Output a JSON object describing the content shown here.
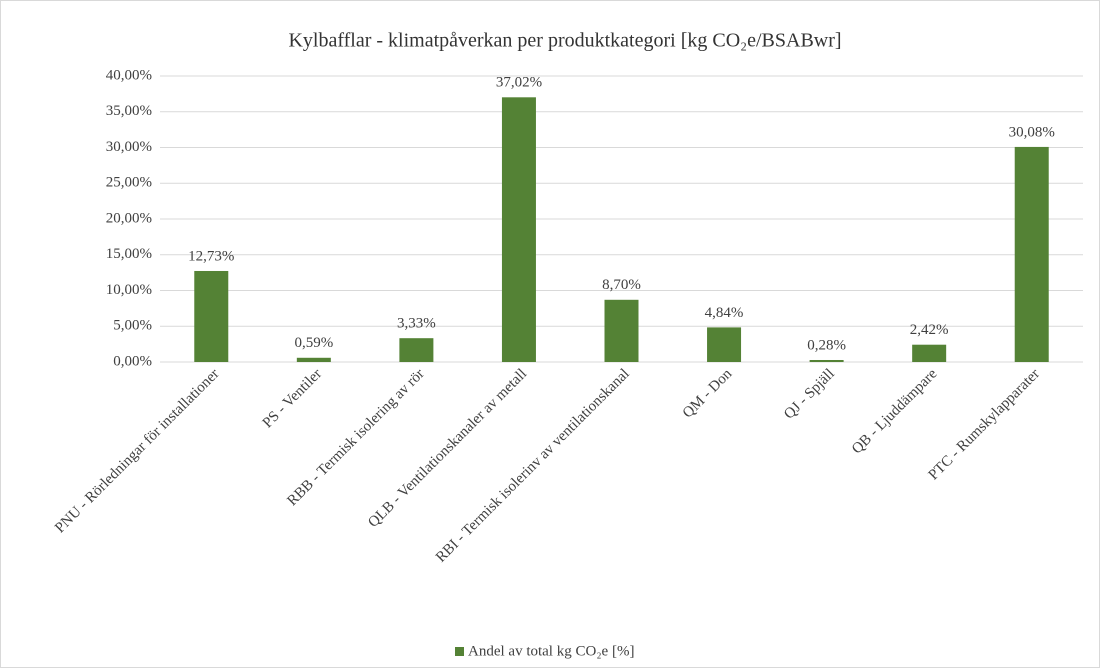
{
  "chart_data": {
    "type": "bar",
    "title": "Kylbafflar - klimatpåverkan per produktkategori [kg CO₂e/BSABwr]",
    "categories": [
      "PNU - Rörledningar för installationer",
      "PS - Ventiler",
      "RBB - Termisk isolering av rör",
      "QLB - Ventilationskanaler av metall",
      "RBI - Termisk isolerinv av ventilationskanal",
      "QM - Don",
      "QJ - Spjäll",
      "QB - Ljuddämpare",
      "PTC - Rumskylapparater"
    ],
    "series": [
      {
        "name": "Andel av total kg CO₂e [%]",
        "color": "#548235",
        "values": [
          12.73,
          0.59,
          3.33,
          37.02,
          8.7,
          4.84,
          0.28,
          2.42,
          30.08
        ],
        "value_labels": [
          "12,73%",
          "0,59%",
          "3,33%",
          "37,02%",
          "8,70%",
          "4,84%",
          "0,28%",
          "2,42%",
          "30,08%"
        ]
      }
    ],
    "ylim": [
      0,
      40
    ],
    "yticks": [
      {
        "value": 0,
        "label": "0,00%"
      },
      {
        "value": 5,
        "label": "5,00%"
      },
      {
        "value": 10,
        "label": "10,00%"
      },
      {
        "value": 15,
        "label": "15,00%"
      },
      {
        "value": 20,
        "label": "20,00%"
      },
      {
        "value": 25,
        "label": "25,00%"
      },
      {
        "value": 30,
        "label": "30,00%"
      },
      {
        "value": 35,
        "label": "35,00%"
      },
      {
        "value": 40,
        "label": "40,00%"
      }
    ],
    "grid": true,
    "legend": "bottom"
  }
}
